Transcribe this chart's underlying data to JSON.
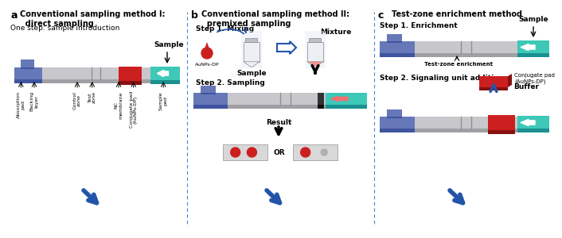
{
  "title_a": "Conventional sampling method I:\n  direct sampling",
  "subtitle_a": "One step: sample introduction",
  "title_b": "Conventional sampling method II:\n  premixed sampling",
  "title_c": "Test-zone enrichment method",
  "label_a": "a",
  "label_b": "b",
  "label_c": "c",
  "step1_b": "Step 1. Mixing",
  "step2_b": "Step 2. Sampling",
  "result_b": "Result",
  "step1_c": "Step 1. Enrichment",
  "step2_c": "Step 2. Signaling unit addition",
  "or_text": "OR",
  "mixture_text": "Mixture",
  "aunps_text": "AuNPs-DP",
  "sample_text_b": "Sample",
  "sample_text_a": "Sample",
  "sample_text_c": "Sample",
  "test_zone_text": "Test-zone enrichment",
  "conjugate_text": "Conjugate pad\n(AuNPs-DP)",
  "buffer_text": "Buffer",
  "labels_a": [
    "Absorption\npad",
    "Backing\nlayer",
    "Control\nzone",
    "Test\nzone",
    "NC\nmembrane",
    "Conjugate pad\n(AuNPs-DP)",
    "Sample\npad"
  ],
  "bg_color": "#ffffff",
  "blue_color": "#6678b8",
  "teal_color": "#3dc8b8",
  "gray_top": "#c8c8cc",
  "gray_side": "#a0a0a4",
  "red_color": "#cc2020",
  "red_dark": "#881010",
  "light_red": "#f07070",
  "arrow_color": "#2255aa",
  "black": "#000000"
}
